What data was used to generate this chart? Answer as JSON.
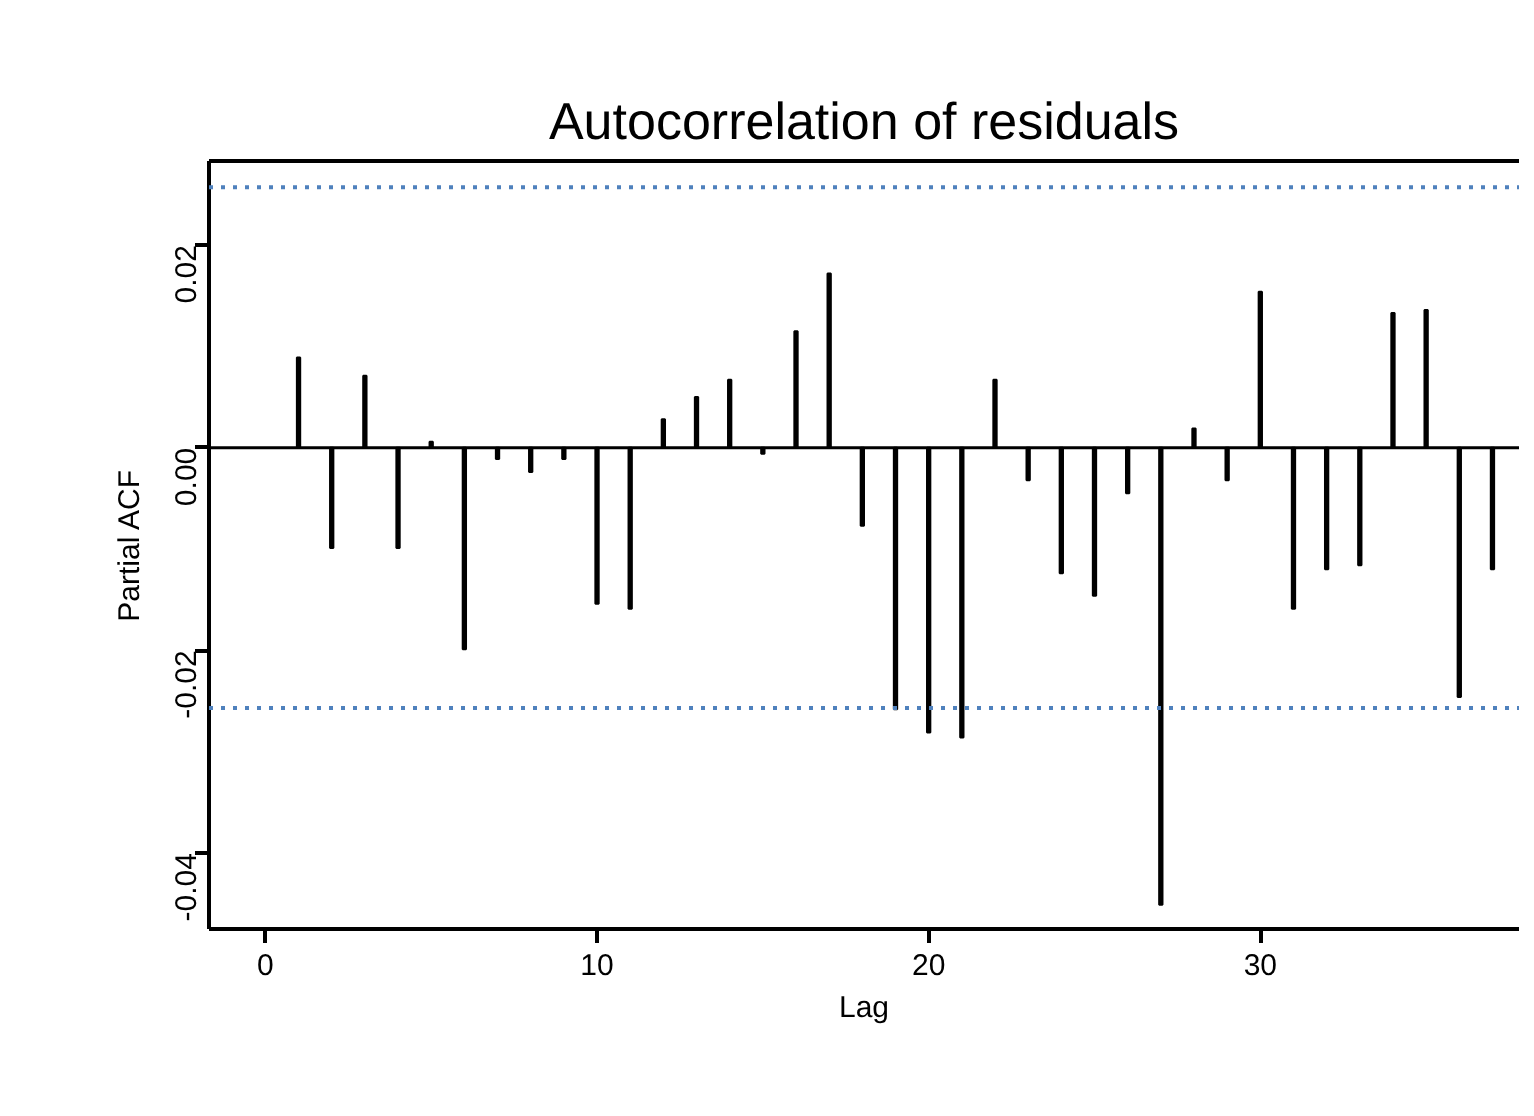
{
  "chart_data": {
    "type": "bar",
    "title": "Autocorrelation of residuals",
    "xlabel": "Lag",
    "ylabel": "Partial ACF",
    "x": [
      1,
      2,
      3,
      4,
      5,
      6,
      7,
      8,
      9,
      10,
      11,
      12,
      13,
      14,
      15,
      16,
      17,
      18,
      19,
      20,
      21,
      22,
      23,
      24,
      25,
      26,
      27,
      28,
      29,
      30,
      31,
      32,
      33,
      34,
      35,
      36,
      37
    ],
    "values": [
      0.0089,
      -0.0099,
      0.0071,
      -0.0099,
      0.0006,
      -0.0199,
      -0.0011,
      -0.0024,
      -0.0011,
      -0.0154,
      -0.0159,
      0.0028,
      0.005,
      0.0067,
      -0.0006,
      0.0115,
      0.0172,
      -0.0077,
      -0.0258,
      -0.0281,
      -0.0286,
      0.0067,
      -0.0032,
      -0.0124,
      -0.0146,
      -0.0045,
      -0.0451,
      0.0019,
      -0.0032,
      0.0154,
      -0.0159,
      -0.012,
      -0.0116,
      0.0133,
      0.0136,
      -0.0246,
      -0.012
    ],
    "color": "#000000",
    "xlim": [
      -1.7,
      37.8
    ],
    "ylim": [
      -0.0475,
      0.0283
    ],
    "xticks": [
      0,
      10,
      20,
      30
    ],
    "yticks": [
      {
        "value": -0.04,
        "label": "-0.04"
      },
      {
        "value": -0.02,
        "label": "-0.02"
      },
      {
        "value": 0,
        "label": "0.00"
      },
      {
        "value": 0.02,
        "label": "0.02"
      }
    ],
    "ref_lines": [
      {
        "axis": "y",
        "value": 0,
        "color": "#000000",
        "line_style": "solid"
      },
      {
        "axis": "y",
        "value": 0.0257,
        "color": "#4f81bd",
        "line_style": "dotted"
      },
      {
        "axis": "y",
        "value": -0.0257,
        "color": "#4f81bd",
        "line_style": "dotted"
      }
    ],
    "grid": false
  }
}
